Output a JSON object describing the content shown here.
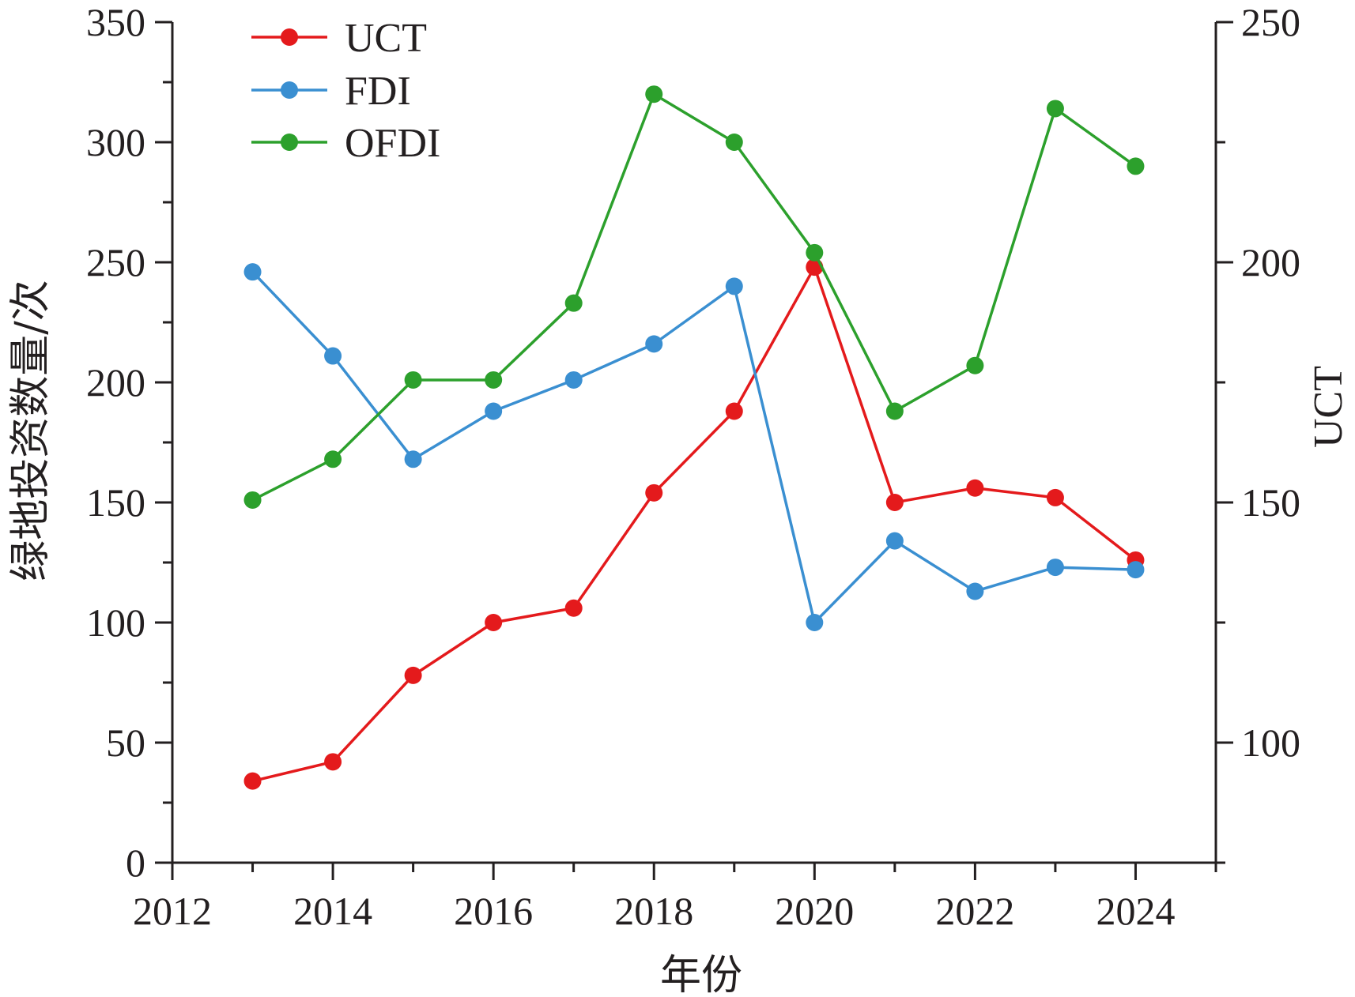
{
  "chart_data": {
    "type": "line",
    "xlabel": "年份",
    "ylabel_left": "绿地投资数量/次",
    "ylabel_right": "UCT",
    "x_ticks": [
      "2012",
      "2014",
      "2016",
      "2018",
      "2020",
      "2022",
      "2024"
    ],
    "xlim": [
      2012,
      2025
    ],
    "ylim_left": [
      0,
      350
    ],
    "ylim_right": [
      75,
      250
    ],
    "y_ticks_left": [
      "0",
      "50",
      "100",
      "150",
      "200",
      "250",
      "300",
      "350"
    ],
    "y_ticks_right": [
      "100",
      "150",
      "200",
      "250"
    ],
    "grid": false,
    "legend_position": "top-left",
    "series": [
      {
        "name": "UCT",
        "axis": "right",
        "color": "#e41a1c",
        "x": [
          2013,
          2014,
          2015,
          2016,
          2017,
          2018,
          2019,
          2020,
          2021,
          2022,
          2023,
          2024
        ],
        "y": [
          92,
          96,
          114,
          125,
          128,
          152,
          169,
          199,
          150,
          153,
          151,
          138
        ]
      },
      {
        "name": "FDI",
        "axis": "left",
        "color": "#3a8fd1",
        "x": [
          2013,
          2014,
          2015,
          2016,
          2017,
          2018,
          2019,
          2020,
          2021,
          2022,
          2023,
          2024
        ],
        "y": [
          246,
          211,
          168,
          188,
          201,
          216,
          240,
          100,
          134,
          113,
          123,
          122
        ]
      },
      {
        "name": "OFDI",
        "axis": "left",
        "color": "#2ca02c",
        "x": [
          2013,
          2014,
          2015,
          2016,
          2017,
          2018,
          2019,
          2020,
          2021,
          2022,
          2023,
          2024
        ],
        "y": [
          151,
          168,
          201,
          201,
          233,
          320,
          300,
          254,
          188,
          207,
          314,
          290
        ]
      }
    ]
  }
}
